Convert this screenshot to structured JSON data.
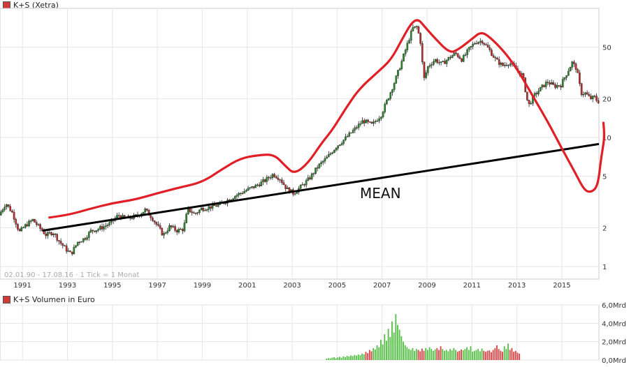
{
  "app": {
    "price_title": "K+S (Xetra)",
    "volume_title": "K+S Volumen in Euro",
    "info_text": "02.01.90 - 17.08.16 · 1 Tick = 1 Monat",
    "annotation_mean": "MEAN"
  },
  "colors": {
    "up": "#2a8a2a",
    "down": "#c42b2b",
    "candle": "#222222",
    "hand_drawn": "#e01f26",
    "mean_line": "#000000",
    "grid": "#e6e6e6",
    "vol_up": "#59c14a",
    "vol_down": "#d94848",
    "title_square": "#d23a3a"
  },
  "chart_data": [
    {
      "type": "candlestick",
      "title": "K+S (Xetra)",
      "y_scale": "log",
      "x_ticks": [
        "1991",
        "1993",
        "1995",
        "1997",
        "1999",
        "2001",
        "2003",
        "2005",
        "2007",
        "2009",
        "2011",
        "2013",
        "2015"
      ],
      "x_tick_values": [
        1991,
        1993,
        1995,
        1997,
        1999,
        2001,
        2003,
        2005,
        2007,
        2009,
        2011,
        2013,
        2015
      ],
      "y_ticks": [
        "50",
        "20",
        "10",
        "5",
        "2",
        "1"
      ],
      "y_tick_values": [
        50,
        20,
        10,
        5,
        2,
        1
      ],
      "xlim": [
        1990.0,
        2016.65
      ],
      "ylim": [
        0.8,
        100
      ],
      "price_path": [
        [
          1990.0,
          2.5
        ],
        [
          1990.3,
          3.1
        ],
        [
          1990.6,
          2.6
        ],
        [
          1990.9,
          1.85
        ],
        [
          1991.2,
          2.1
        ],
        [
          1991.5,
          2.3
        ],
        [
          1991.8,
          2.0
        ],
        [
          1992.1,
          1.75
        ],
        [
          1992.4,
          1.85
        ],
        [
          1992.7,
          1.55
        ],
        [
          1993.0,
          1.35
        ],
        [
          1993.2,
          1.25
        ],
        [
          1993.5,
          1.55
        ],
        [
          1993.8,
          1.65
        ],
        [
          1994.1,
          1.9
        ],
        [
          1994.4,
          1.95
        ],
        [
          1994.7,
          2.05
        ],
        [
          1995.0,
          2.2
        ],
        [
          1995.3,
          2.5
        ],
        [
          1995.6,
          2.35
        ],
        [
          1995.9,
          2.4
        ],
        [
          1996.2,
          2.5
        ],
        [
          1996.5,
          2.75
        ],
        [
          1996.8,
          2.4
        ],
        [
          1997.1,
          2.0
        ],
        [
          1997.3,
          1.75
        ],
        [
          1997.6,
          2.05
        ],
        [
          1997.9,
          1.9
        ],
        [
          1998.2,
          1.95
        ],
        [
          1998.4,
          2.8
        ],
        [
          1998.7,
          2.55
        ],
        [
          1999.0,
          2.8
        ],
        [
          1999.4,
          2.9
        ],
        [
          1999.8,
          3.0
        ],
        [
          2000.2,
          3.3
        ],
        [
          2000.6,
          3.6
        ],
        [
          2001.0,
          3.9
        ],
        [
          2001.4,
          4.2
        ],
        [
          2001.8,
          4.6
        ],
        [
          2002.2,
          5.2
        ],
        [
          2002.5,
          4.8
        ],
        [
          2002.8,
          4.0
        ],
        [
          2003.1,
          3.7
        ],
        [
          2003.4,
          4.1
        ],
        [
          2003.8,
          4.8
        ],
        [
          2004.2,
          6.0
        ],
        [
          2004.6,
          7.0
        ],
        [
          2005.0,
          8.5
        ],
        [
          2005.4,
          9.8
        ],
        [
          2005.8,
          11.5
        ],
        [
          2006.2,
          13.5
        ],
        [
          2006.6,
          12.5
        ],
        [
          2007.0,
          15.0
        ],
        [
          2007.3,
          20.0
        ],
        [
          2007.6,
          27.0
        ],
        [
          2007.9,
          38.0
        ],
        [
          2008.2,
          55.0
        ],
        [
          2008.4,
          70.0
        ],
        [
          2008.6,
          72.0
        ],
        [
          2008.75,
          55.0
        ],
        [
          2008.9,
          28.0
        ],
        [
          2009.1,
          36.0
        ],
        [
          2009.4,
          40.0
        ],
        [
          2009.7,
          37.0
        ],
        [
          2010.0,
          41.0
        ],
        [
          2010.3,
          45.0
        ],
        [
          2010.6,
          40.0
        ],
        [
          2010.9,
          48.0
        ],
        [
          2011.2,
          55.0
        ],
        [
          2011.5,
          56.0
        ],
        [
          2011.8,
          48.0
        ],
        [
          2012.1,
          40.0
        ],
        [
          2012.4,
          36.0
        ],
        [
          2012.7,
          38.0
        ],
        [
          2013.0,
          34.0
        ],
        [
          2013.3,
          30.0
        ],
        [
          2013.55,
          17.5
        ],
        [
          2013.8,
          21.0
        ],
        [
          2014.1,
          24.0
        ],
        [
          2014.4,
          27.0
        ],
        [
          2014.7,
          25.0
        ],
        [
          2015.0,
          25.5
        ],
        [
          2015.2,
          30.0
        ],
        [
          2015.5,
          38.0
        ],
        [
          2015.7,
          34.0
        ],
        [
          2015.9,
          22.0
        ],
        [
          2016.1,
          22.0
        ],
        [
          2016.3,
          20.0
        ],
        [
          2016.5,
          20.5
        ],
        [
          2016.63,
          19.0
        ]
      ],
      "mean_line": {
        "name": "MEAN",
        "from": [
          1991.9,
          1.9
        ],
        "to": [
          2016.65,
          8.9
        ]
      },
      "hand_drawn_annotation": {
        "name": "red envelope",
        "points": [
          [
            1992.2,
            2.4
          ],
          [
            1993.0,
            2.5
          ],
          [
            1994.0,
            2.8
          ],
          [
            1995.0,
            3.1
          ],
          [
            1996.0,
            3.3
          ],
          [
            1997.0,
            3.7
          ],
          [
            1998.0,
            4.1
          ],
          [
            1999.0,
            4.5
          ],
          [
            1999.9,
            5.7
          ],
          [
            2000.7,
            6.9
          ],
          [
            2001.5,
            7.3
          ],
          [
            2002.2,
            7.4
          ],
          [
            2002.7,
            6.0
          ],
          [
            2003.1,
            5.2
          ],
          [
            2003.7,
            6.3
          ],
          [
            2004.3,
            9.0
          ],
          [
            2004.8,
            11.5
          ],
          [
            2005.4,
            17.0
          ],
          [
            2006.0,
            24.0
          ],
          [
            2006.8,
            32.0
          ],
          [
            2007.4,
            40.0
          ],
          [
            2007.9,
            58.0
          ],
          [
            2008.3,
            77.0
          ],
          [
            2008.6,
            83.0
          ],
          [
            2008.9,
            72.0
          ],
          [
            2009.3,
            60.0
          ],
          [
            2010.0,
            45.0
          ],
          [
            2010.4,
            48.0
          ],
          [
            2011.0,
            58.0
          ],
          [
            2011.4,
            66.0
          ],
          [
            2011.8,
            60.0
          ],
          [
            2012.5,
            45.0
          ],
          [
            2013.1,
            32.0
          ],
          [
            2013.7,
            21.0
          ],
          [
            2014.4,
            13.0
          ],
          [
            2015.0,
            8.2
          ],
          [
            2015.6,
            5.3
          ],
          [
            2016.0,
            3.9
          ],
          [
            2016.3,
            3.75
          ],
          [
            2016.6,
            4.2
          ],
          [
            2016.75,
            7.0
          ],
          [
            2016.9,
            10.0
          ],
          [
            2016.85,
            13.0
          ]
        ]
      }
    },
    {
      "type": "bar",
      "title": "K+S Volumen in Euro",
      "y_ticks": [
        "6,0Mrd",
        "4,0Mrd",
        "2,0Mrd",
        "0,0Mrd"
      ],
      "y_tick_values": [
        6.0,
        4.0,
        2.0,
        0.0
      ],
      "ylim": [
        0,
        6.0
      ],
      "x_start": 2004.5,
      "x_step": 0.0833,
      "values": [
        0.15,
        0.2,
        0.18,
        0.25,
        0.3,
        0.2,
        0.28,
        0.35,
        0.25,
        0.4,
        0.32,
        0.45,
        0.38,
        0.5,
        0.42,
        0.55,
        0.48,
        0.6,
        0.52,
        0.7,
        0.62,
        0.9,
        0.75,
        1.1,
        0.95,
        1.3,
        1.15,
        1.6,
        1.4,
        2.2,
        1.7,
        2.8,
        2.1,
        3.4,
        2.5,
        4.2,
        3.0,
        5.0,
        3.8,
        3.3,
        2.6,
        2.0,
        1.6,
        1.4,
        1.2,
        1.1,
        1.3,
        1.0,
        1.2,
        1.1,
        0.95,
        1.25,
        1.0,
        1.3,
        1.1,
        1.4,
        1.2,
        1.0,
        1.15,
        1.3,
        1.1,
        1.5,
        1.2,
        1.0,
        1.1,
        0.95,
        1.2,
        1.05,
        1.3,
        1.1,
        0.9,
        1.0,
        1.15,
        1.05,
        1.2,
        1.4,
        1.1,
        1.5,
        0.9,
        1.0,
        1.1,
        1.2,
        0.95,
        1.25,
        1.0,
        0.9,
        1.0,
        1.05,
        0.85,
        1.1,
        1.3,
        1.6,
        1.2,
        1.0,
        0.9,
        1.5,
        1.2,
        1.8,
        1.1,
        1.3,
        0.9,
        1.0,
        0.8,
        0.7
      ],
      "directions": "alternating per price month: up = green, down = red"
    }
  ]
}
